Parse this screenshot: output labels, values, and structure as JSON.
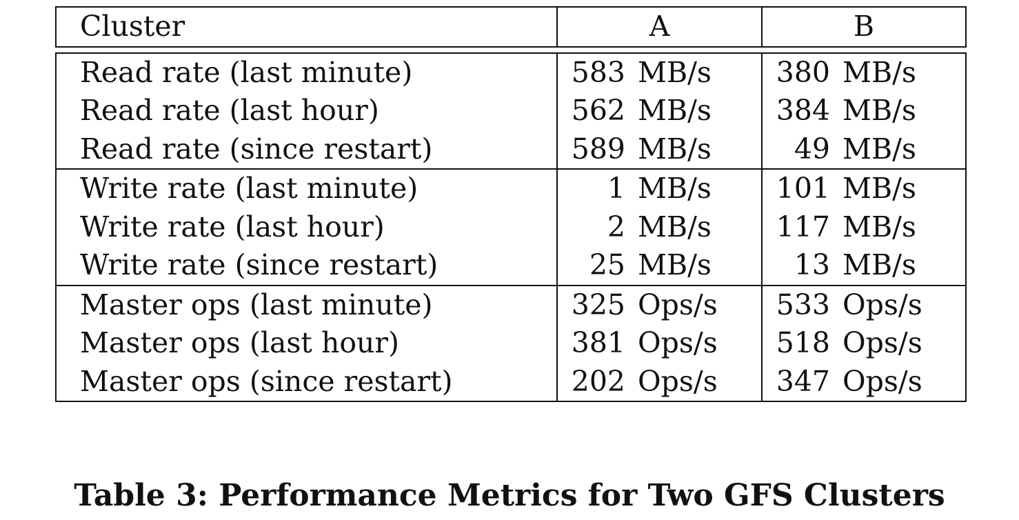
{
  "table": {
    "header": [
      "Cluster",
      "A",
      "B"
    ],
    "groups": [
      [
        {
          "metric": "Read rate (last minute)",
          "a_value": "583",
          "a_unit": "MB/s",
          "b_value": "380",
          "b_unit": "MB/s"
        },
        {
          "metric": "Read rate (last hour)",
          "a_value": "562",
          "a_unit": "MB/s",
          "b_value": "384",
          "b_unit": "MB/s"
        },
        {
          "metric": "Read rate (since restart)",
          "a_value": "589",
          "a_unit": "MB/s",
          "b_value": "49",
          "b_unit": "MB/s"
        }
      ],
      [
        {
          "metric": "Write rate (last minute)",
          "a_value": "1",
          "a_unit": "MB/s",
          "b_value": "101",
          "b_unit": "MB/s"
        },
        {
          "metric": "Write rate (last hour)",
          "a_value": "2",
          "a_unit": "MB/s",
          "b_value": "117",
          "b_unit": "MB/s"
        },
        {
          "metric": "Write rate (since restart)",
          "a_value": "25",
          "a_unit": "MB/s",
          "b_value": "13",
          "b_unit": "MB/s"
        }
      ],
      [
        {
          "metric": "Master ops (last minute)",
          "a_value": "325",
          "a_unit": "Ops/s",
          "b_value": "533",
          "b_unit": "Ops/s"
        },
        {
          "metric": "Master ops (last hour)",
          "a_value": "381",
          "a_unit": "Ops/s",
          "b_value": "518",
          "b_unit": "Ops/s"
        },
        {
          "metric": "Master ops (since restart)",
          "a_value": "202",
          "a_unit": "Ops/s",
          "b_value": "347",
          "b_unit": "Ops/s"
        }
      ]
    ]
  },
  "caption": "Table 3: Performance Metrics for Two GFS Clusters"
}
